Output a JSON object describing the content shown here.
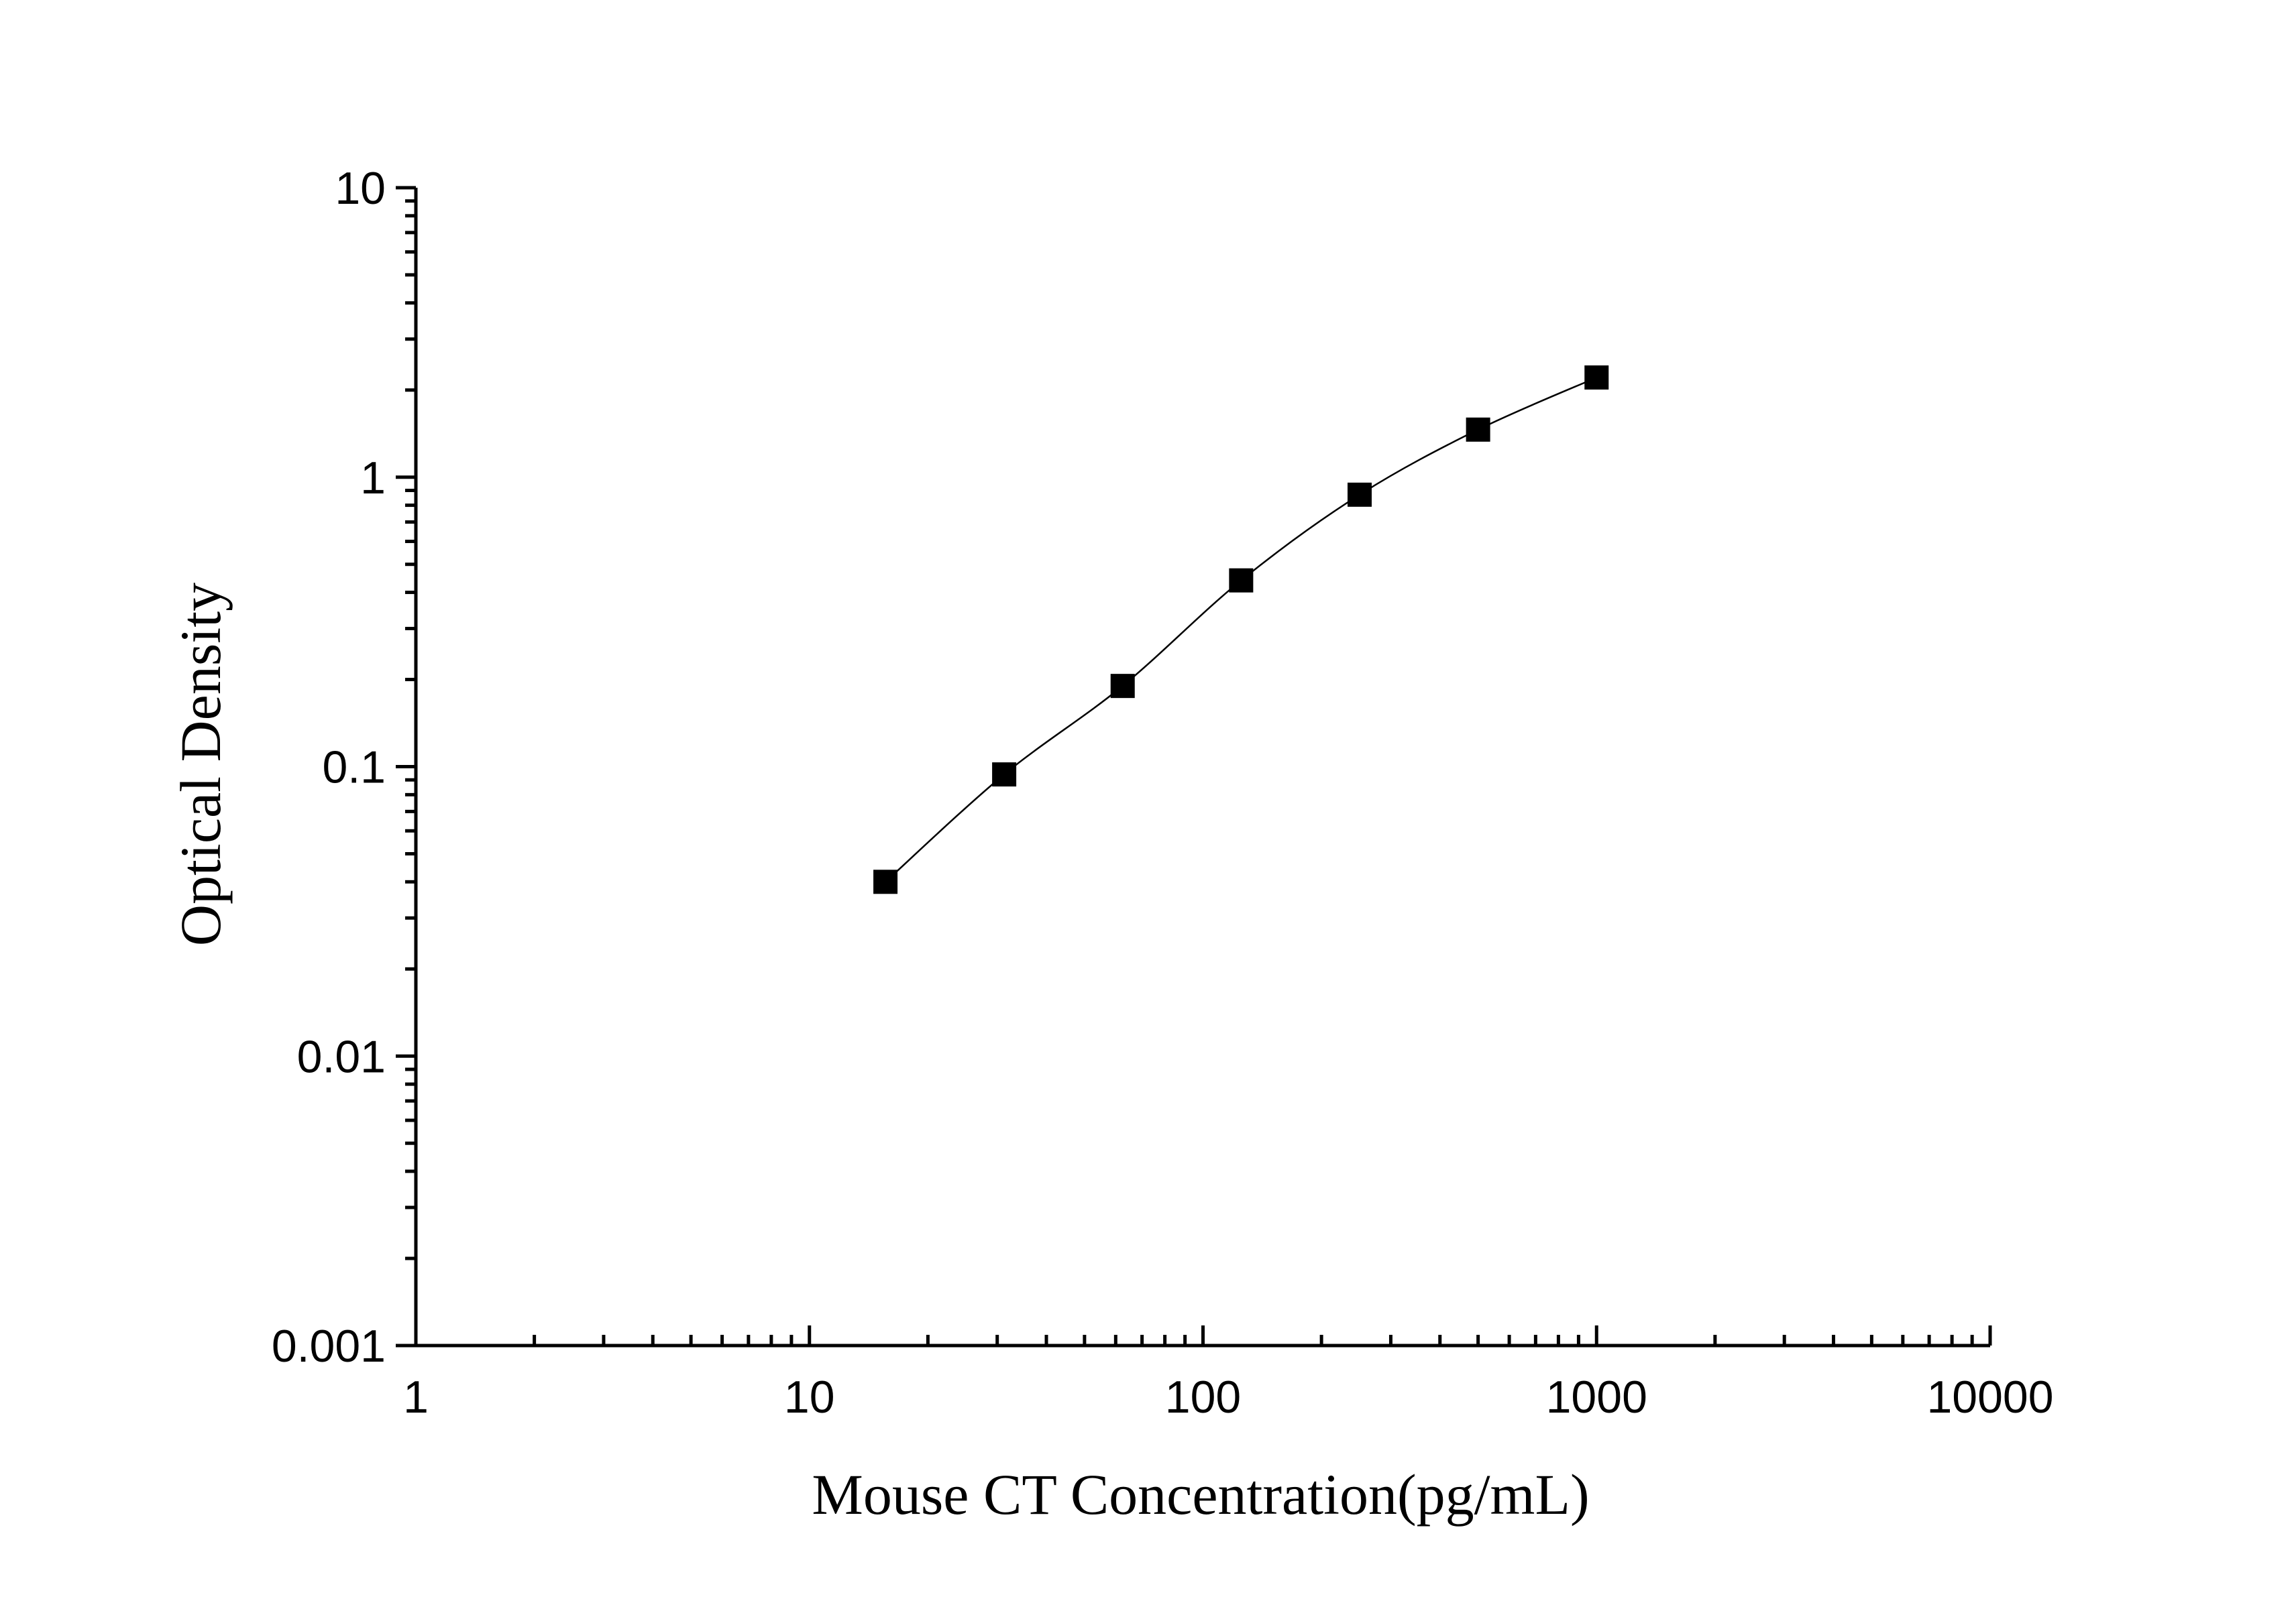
{
  "chart_data": {
    "type": "scatter",
    "xlabel": "Mouse CT Concentration(pg/mL)",
    "ylabel": "Optical Density",
    "x_scale": "log",
    "y_scale": "log",
    "xlim": [
      1,
      10000
    ],
    "ylim": [
      0.001,
      10
    ],
    "x_ticks": [
      {
        "value": 1,
        "label": "1"
      },
      {
        "value": 10,
        "label": "10"
      },
      {
        "value": 100,
        "label": "100"
      },
      {
        "value": 1000,
        "label": "1000"
      },
      {
        "value": 10000,
        "label": "10000"
      }
    ],
    "y_ticks": [
      {
        "value": 0.001,
        "label": "0.001"
      },
      {
        "value": 0.01,
        "label": "0.01"
      },
      {
        "value": 0.1,
        "label": "0.1"
      },
      {
        "value": 1,
        "label": "1"
      },
      {
        "value": 10,
        "label": "10"
      }
    ],
    "grid": false,
    "legend": "none",
    "series": [
      {
        "marker": "square",
        "color": "#000000",
        "fit_line": true,
        "points": [
          {
            "x": 15.6,
            "y": 0.04
          },
          {
            "x": 31.25,
            "y": 0.094
          },
          {
            "x": 62.5,
            "y": 0.19
          },
          {
            "x": 125,
            "y": 0.44
          },
          {
            "x": 250,
            "y": 0.87
          },
          {
            "x": 500,
            "y": 1.46
          },
          {
            "x": 1000,
            "y": 2.21
          }
        ]
      }
    ]
  }
}
